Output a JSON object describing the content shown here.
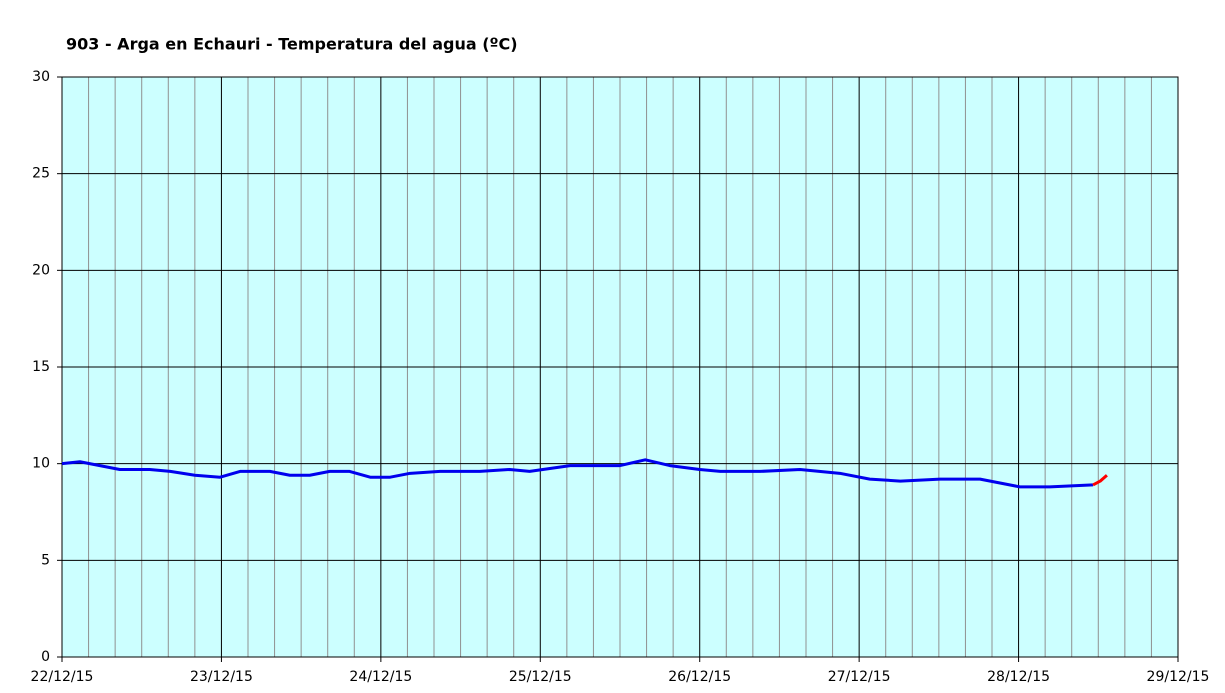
{
  "chart_data": {
    "type": "line",
    "title": "903 - Arga en Echauri - Temperatura del agua (ºC)",
    "series": [
      {
        "color": "#0000ee",
        "x": [
          0,
          2.7,
          5.7,
          8.7,
          13.2,
          16.3,
          20.0,
          23.8,
          26.8,
          31.3,
          34.3,
          37.3,
          40.3,
          43.3,
          46.4,
          49.4,
          52.4,
          56.9,
          62.9,
          67.4,
          70.4,
          76.5,
          84.0,
          87.8,
          91.5,
          96.0,
          99.1,
          105.1,
          111.1,
          117.1,
          121.6,
          126.2,
          132.2,
          138.2,
          144.2,
          148.7,
          155.2
        ],
        "values": [
          10.0,
          10.1,
          9.9,
          9.7,
          9.7,
          9.6,
          9.4,
          9.3,
          9.6,
          9.6,
          9.4,
          9.4,
          9.6,
          9.6,
          9.3,
          9.3,
          9.5,
          9.6,
          9.6,
          9.7,
          9.6,
          9.9,
          9.9,
          10.2,
          9.9,
          9.7,
          9.6,
          9.6,
          9.7,
          9.5,
          9.2,
          9.1,
          9.2,
          9.2,
          8.8,
          8.8,
          8.9
        ]
      },
      {
        "color": "#ff0000",
        "x": [
          155.2,
          156.3,
          157.3
        ],
        "values": [
          8.9,
          9.1,
          9.4
        ]
      }
    ],
    "xlim": [
      0,
      168
    ],
    "xticks": [
      {
        "value": 0,
        "label": "22/12/15"
      },
      {
        "value": 24,
        "label": "23/12/15"
      },
      {
        "value": 48,
        "label": "24/12/15"
      },
      {
        "value": 72,
        "label": "25/12/15"
      },
      {
        "value": 96,
        "label": "26/12/15"
      },
      {
        "value": 120,
        "label": "27/12/15"
      },
      {
        "value": 144,
        "label": "28/12/15"
      },
      {
        "value": 168,
        "label": "29/12/15"
      }
    ],
    "xminorticks": [
      4,
      8,
      12,
      16,
      20,
      28,
      32,
      36,
      40,
      44,
      52,
      56,
      60,
      64,
      68,
      76,
      80,
      84,
      88,
      92,
      100,
      104,
      108,
      112,
      116,
      124,
      128,
      132,
      136,
      140,
      148,
      152,
      156,
      160,
      164
    ],
    "ylim": [
      0,
      30
    ],
    "yticks": [
      0,
      5,
      10,
      15,
      20,
      25,
      30
    ],
    "grid": true,
    "background": "#ccffff"
  }
}
